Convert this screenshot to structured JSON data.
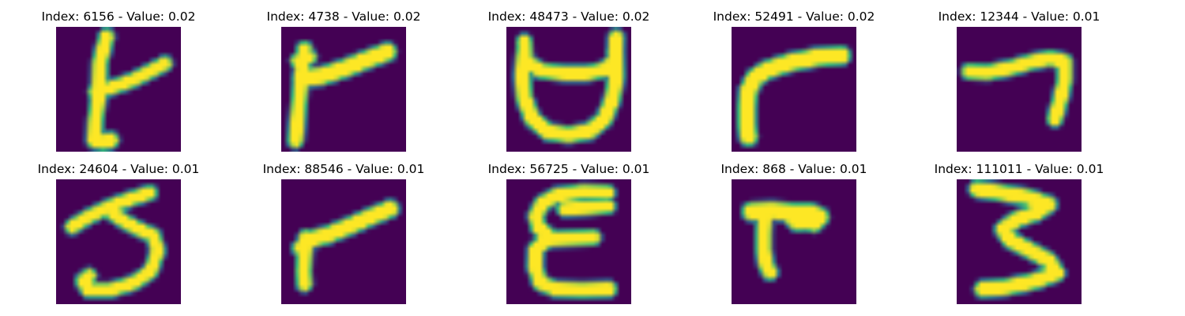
{
  "colors": {
    "background": "#440154",
    "low": "#31688e",
    "mid": "#35b779",
    "high": "#fde725"
  },
  "panels": [
    {
      "title": "Index: 6156 - Value: 0.02",
      "strokes": [
        {
          "w": 2.2,
          "pts": [
            [
              11.3,
              2.2
            ],
            [
              9.8,
              8
            ],
            [
              9.6,
              15
            ],
            [
              8.8,
              21
            ],
            [
              8.6,
              25.5
            ]
          ]
        },
        {
          "w": 2.4,
          "pts": [
            [
              8.8,
              25.2
            ],
            [
              10.4,
              25.8
            ],
            [
              12.2,
              25.4
            ]
          ]
        },
        {
          "w": 2.0,
          "pts": [
            [
              8.8,
              14.6
            ],
            [
              13,
              13.4
            ],
            [
              17,
              12
            ],
            [
              21,
              10
            ],
            [
              24.4,
              8.2
            ]
          ]
        }
      ]
    },
    {
      "title": "Index: 4738 - Value: 0.02",
      "strokes": [
        {
          "w": 2.2,
          "pts": [
            [
              5.2,
              5
            ],
            [
              4.4,
              12
            ],
            [
              3.8,
              19
            ],
            [
              3.2,
              25.4
            ]
          ]
        },
        {
          "w": 2.8,
          "pts": [
            [
              4.6,
              11.4
            ],
            [
              9,
              11
            ],
            [
              14,
              9.4
            ],
            [
              19,
              7.4
            ],
            [
              23.8,
              5.6
            ]
          ]
        },
        {
          "w": 1.8,
          "pts": [
            [
              3.6,
              7.6
            ],
            [
              6.4,
              6.8
            ]
          ]
        }
      ]
    },
    {
      "title": "Index: 48473 - Value: 0.02",
      "strokes": [
        {
          "w": 2.4,
          "pts": [
            [
              4,
              6
            ],
            [
              3.6,
              11
            ],
            [
              4,
              16
            ],
            [
              5.8,
              20.6
            ],
            [
              9.4,
              23.6
            ],
            [
              14,
              24.2
            ],
            [
              18.6,
              23.4
            ],
            [
              22,
              20.6
            ],
            [
              23.8,
              16
            ],
            [
              24.6,
              11
            ],
            [
              24.4,
              5.6
            ]
          ]
        },
        {
          "w": 2.2,
          "pts": [
            [
              4,
              3.4
            ],
            [
              4.2,
              7.6
            ],
            [
              7.6,
              9.8
            ],
            [
              13,
              10.4
            ],
            [
              18,
              10.4
            ],
            [
              22,
              9.6
            ],
            [
              24.4,
              7.4
            ],
            [
              24.6,
              2.4
            ]
          ]
        }
      ]
    },
    {
      "title": "Index: 52491 - Value: 0.02",
      "strokes": [
        {
          "w": 2.8,
          "pts": [
            [
              24.6,
              6.4
            ],
            [
              19,
              6.8
            ],
            [
              13,
              8
            ],
            [
              8,
              9.6
            ],
            [
              5.2,
              11.4
            ],
            [
              3.8,
              14.2
            ],
            [
              3.4,
              18
            ],
            [
              3.4,
              22
            ],
            [
              3.8,
              24.6
            ]
          ]
        }
      ]
    },
    {
      "title": "Index: 12344 - Value: 0.01",
      "strokes": [
        {
          "w": 2.2,
          "pts": [
            [
              2.8,
              10
            ],
            [
              7,
              10.2
            ],
            [
              12,
              9.2
            ],
            [
              17,
              7.8
            ],
            [
              21,
              7
            ],
            [
              24.2,
              7.8
            ],
            [
              24.2,
              12
            ],
            [
              23.2,
              16.4
            ],
            [
              22,
              20.6
            ]
          ]
        }
      ]
    },
    {
      "title": "Index: 24604 - Value: 0.01",
      "strokes": [
        {
          "w": 2.0,
          "pts": [
            [
              3.6,
              10.6
            ],
            [
              7.2,
              8.4
            ],
            [
              12.2,
              6
            ],
            [
              16.6,
              4.4
            ],
            [
              21,
              3
            ]
          ]
        },
        {
          "w": 2.0,
          "pts": [
            [
              12.6,
              7.6
            ],
            [
              15.6,
              9.6
            ],
            [
              18.6,
              11.2
            ],
            [
              21.8,
              12.6
            ],
            [
              22.8,
              16
            ],
            [
              21.2,
              20.6
            ],
            [
              17.4,
              23.2
            ],
            [
              12.2,
              24.8
            ],
            [
              7.2,
              24.8
            ],
            [
              6,
              22.8
            ],
            [
              7.4,
              21.6
            ]
          ]
        }
      ]
    },
    {
      "title": "Index: 88546 - Value: 0.01",
      "strokes": [
        {
          "w": 2.2,
          "pts": [
            [
              5.6,
              13
            ],
            [
              5.2,
              17
            ],
            [
              5,
              20.8
            ],
            [
              5.2,
              23.4
            ]
          ]
        },
        {
          "w": 2.6,
          "pts": [
            [
              5.6,
              13.6
            ],
            [
              10,
              12.6
            ],
            [
              15,
              10.6
            ],
            [
              20,
              8.4
            ],
            [
              24.4,
              6.6
            ]
          ]
        },
        {
          "w": 1.8,
          "pts": [
            [
              4,
              15.4
            ],
            [
              5.8,
              14.2
            ]
          ]
        }
      ]
    },
    {
      "title": "Index: 56725 - Value: 0.01",
      "strokes": [
        {
          "w": 2.2,
          "pts": [
            [
              22.6,
              3
            ],
            [
              17,
              2.8
            ],
            [
              11.2,
              3.6
            ],
            [
              8,
              5.4
            ],
            [
              6.6,
              8.2
            ],
            [
              7.2,
              10.8
            ],
            [
              9.4,
              12.6
            ]
          ]
        },
        {
          "w": 2.2,
          "pts": [
            [
              19.4,
              13
            ],
            [
              14,
              13.2
            ],
            [
              9.2,
              13.4
            ],
            [
              6.6,
              15.6
            ],
            [
              6.4,
              19.6
            ],
            [
              7.6,
              23.2
            ],
            [
              11,
              24.6
            ],
            [
              17,
              24.8
            ],
            [
              23,
              24.6
            ]
          ]
        },
        {
          "w": 2.0,
          "pts": [
            [
              22.8,
              6
            ],
            [
              18,
              6.4
            ],
            [
              13,
              6.6
            ]
          ]
        }
      ]
    },
    {
      "title": "Index: 868 - Value: 0.01",
      "strokes": [
        {
          "w": 2.8,
          "pts": [
            [
              4.4,
              7.2
            ],
            [
              9,
              7
            ],
            [
              14,
              7.4
            ],
            [
              17.6,
              7.4
            ],
            [
              19.8,
              8.4
            ],
            [
              18.4,
              9.8
            ]
          ]
        },
        {
          "w": 2.2,
          "pts": [
            [
              7.4,
              8.6
            ],
            [
              7.2,
              12
            ],
            [
              7.2,
              16
            ],
            [
              7.8,
              19.4
            ],
            [
              8.6,
              20.8
            ]
          ]
        },
        {
          "w": 2.2,
          "pts": [
            [
              13,
              8.2
            ],
            [
              14.6,
              9.8
            ],
            [
              16,
              9.8
            ]
          ]
        }
      ]
    },
    {
      "title": "Index: 111011 - Value: 0.01",
      "strokes": [
        {
          "w": 2.4,
          "pts": [
            [
              4.6,
              2.2
            ],
            [
              10,
              3
            ],
            [
              16,
              4
            ],
            [
              20.6,
              5.6
            ],
            [
              18,
              7.4
            ],
            [
              13.4,
              9
            ],
            [
              10.4,
              11.2
            ],
            [
              12,
              13.6
            ],
            [
              16.6,
              16
            ],
            [
              20.6,
              18.2
            ],
            [
              22.4,
              21
            ],
            [
              17.6,
              22.8
            ],
            [
              11,
              24.2
            ],
            [
              5.8,
              24.6
            ]
          ]
        }
      ]
    }
  ]
}
